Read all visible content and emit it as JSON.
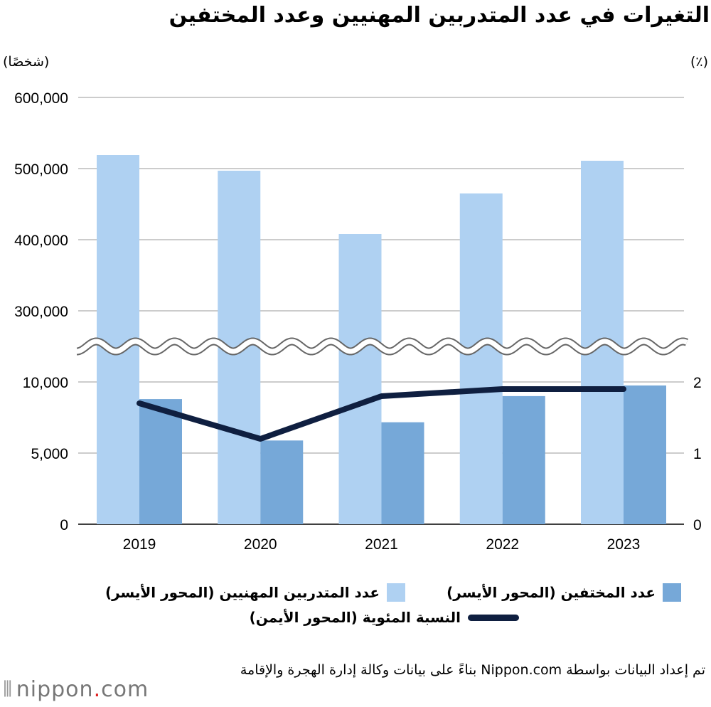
{
  "title": "التغيرات في عدد المتدربين المهنيين وعدد المختفين",
  "left_unit": "(شخصًا)",
  "right_unit": "(٪)",
  "colors": {
    "trainees": "#afd1f2",
    "missing": "#76a8d8",
    "rate": "#0f1f40",
    "grid": "#cccccc"
  },
  "chart_data": {
    "type": "bar",
    "categories": [
      "2019",
      "2020",
      "2021",
      "2022",
      "2023"
    ],
    "series": [
      {
        "name": "عدد المتدربين المهنيين (المحور الأيسر)",
        "type": "bar",
        "axis": "left",
        "values": [
          519000,
          497000,
          408000,
          465000,
          511000
        ]
      },
      {
        "name": "عدد المختفين (المحور الأيسر)",
        "type": "bar",
        "axis": "left",
        "values": [
          8796,
          5885,
          7167,
          9006,
          9753
        ]
      },
      {
        "name": "النسبة المئوية (المحور الأيمن)",
        "type": "line",
        "axis": "right",
        "values": [
          1.7,
          1.2,
          1.8,
          1.9,
          1.9
        ]
      }
    ],
    "left_axis": {
      "broken": true,
      "lower_range": [
        0,
        10000
      ],
      "upper_range": [
        300000,
        600000
      ],
      "ticks": [
        "0",
        "5,000",
        "10,000",
        "300,000",
        "400,000",
        "500,000",
        "600,000"
      ]
    },
    "right_axis": {
      "range": [
        0,
        2
      ],
      "ticks": [
        "0",
        "1",
        "2"
      ]
    },
    "grid": true,
    "legend_position": "bottom"
  },
  "legend": {
    "missing": "عدد المختفين (المحور الأيسر)",
    "trainees": "عدد المتدربين المهنيين (المحور الأيسر)",
    "rate": "النسبة المئوية (المحور الأيمن)"
  },
  "source": "تم إعداد البيانات بواسطة Nippon.com بناءً على بيانات وكالة إدارة الهجرة والإقامة",
  "logo": "nippon.com"
}
